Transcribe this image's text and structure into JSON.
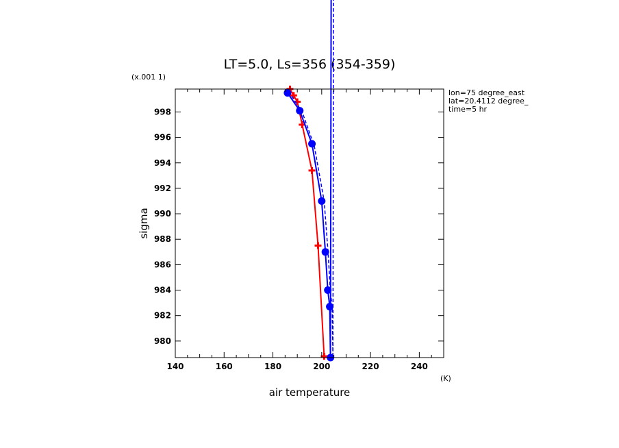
{
  "chart_data": {
    "type": "line",
    "title": "LT=5.0, Ls=356 (354-359)",
    "xlabel": "air temperature",
    "xunit": "(K)",
    "ylabel": "sigma",
    "yscale_label": "(x.001 1)",
    "xlim": [
      140,
      250
    ],
    "ylim": [
      999.8,
      978.7
    ],
    "x_ticks": [
      140,
      160,
      180,
      200,
      220,
      240
    ],
    "y_ticks": [
      980,
      982,
      984,
      986,
      988,
      990,
      992,
      994,
      996,
      998
    ],
    "annotations": [
      "lon=75 degree_east",
      "lat=20.4112 degree_",
      "time=5 hr"
    ],
    "series": [
      {
        "name": "red",
        "color": "#ff0000",
        "marker": "plus",
        "points": [
          [
            187,
            999.8
          ],
          [
            188.5,
            999.3
          ],
          [
            190,
            998.8
          ],
          [
            192,
            997.0
          ],
          [
            196,
            993.4
          ],
          [
            198.5,
            987.5
          ],
          [
            201,
            978.8
          ]
        ]
      },
      {
        "name": "blue",
        "color": "#0000ff",
        "marker": "circle",
        "points": [
          [
            186,
            999.5
          ],
          [
            191,
            998.1
          ],
          [
            196,
            995.5
          ],
          [
            200,
            991.0
          ],
          [
            201.5,
            987.0
          ],
          [
            202.5,
            984.0
          ],
          [
            203.3,
            982.7
          ],
          [
            203.6,
            978.7
          ]
        ],
        "extends_above": true
      },
      {
        "name": "blue-dashed",
        "color": "#0000ff",
        "marker": "none",
        "dashed": true,
        "points": [
          [
            186.5,
            999.6
          ],
          [
            192,
            998.0
          ],
          [
            197,
            995.3
          ],
          [
            201,
            991.0
          ],
          [
            202.6,
            987.0
          ],
          [
            203.5,
            984.0
          ],
          [
            204.3,
            982.7
          ],
          [
            204.6,
            978.7
          ]
        ],
        "extends_above": true
      }
    ]
  }
}
